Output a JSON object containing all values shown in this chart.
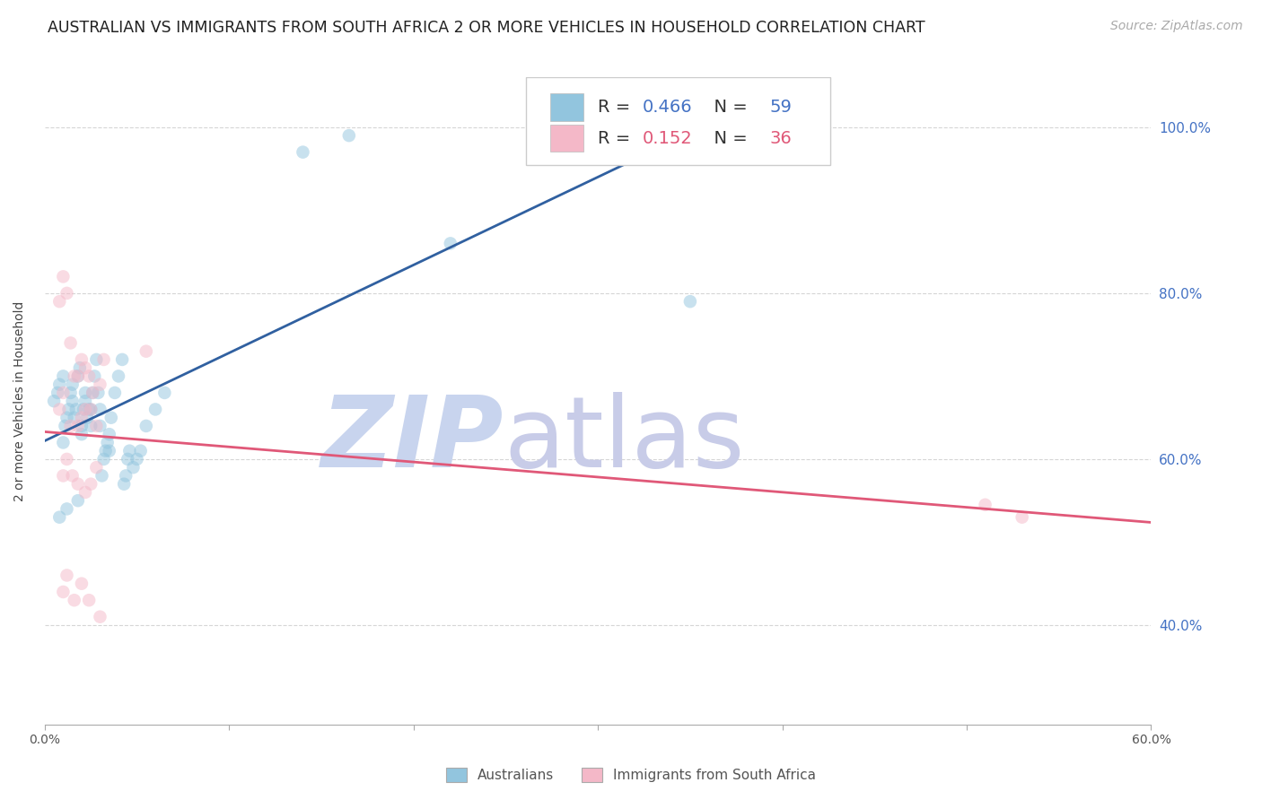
{
  "title": "AUSTRALIAN VS IMMIGRANTS FROM SOUTH AFRICA 2 OR MORE VEHICLES IN HOUSEHOLD CORRELATION CHART",
  "source_text": "Source: ZipAtlas.com",
  "ylabel": "2 or more Vehicles in Household",
  "xlim": [
    0.0,
    0.6
  ],
  "ylim": [
    0.28,
    1.06
  ],
  "x_tick_labels": [
    "0.0%",
    "",
    "",
    "",
    "",
    "",
    "60.0%"
  ],
  "x_tick_vals": [
    0.0,
    0.1,
    0.2,
    0.3,
    0.4,
    0.5,
    0.6
  ],
  "y_tick_vals": [
    0.4,
    0.6,
    0.8,
    1.0
  ],
  "y_tick_labels": [
    "40.0%",
    "60.0%",
    "80.0%",
    "100.0%"
  ],
  "legend_R_blue": "0.466",
  "legend_N_blue": "59",
  "legend_R_pink": "0.152",
  "legend_N_pink": "36",
  "blue_color": "#92c5de",
  "pink_color": "#f4b8c8",
  "blue_line_color": "#3060a0",
  "pink_line_color": "#e05878",
  "watermark_zip_color": "#c8d4ee",
  "watermark_atlas_color": "#c8cce8",
  "blue_aus_x": [
    0.005,
    0.007,
    0.008,
    0.01,
    0.01,
    0.011,
    0.012,
    0.013,
    0.014,
    0.015,
    0.015,
    0.016,
    0.017,
    0.018,
    0.019,
    0.02,
    0.02,
    0.021,
    0.022,
    0.022,
    0.023,
    0.024,
    0.025,
    0.025,
    0.026,
    0.027,
    0.028,
    0.029,
    0.03,
    0.03,
    0.031,
    0.032,
    0.033,
    0.034,
    0.035,
    0.035,
    0.036,
    0.038,
    0.04,
    0.042,
    0.043,
    0.044,
    0.045,
    0.046,
    0.048,
    0.05,
    0.052,
    0.055,
    0.06,
    0.065,
    0.008,
    0.012,
    0.018,
    0.14,
    0.165,
    0.22,
    0.275,
    0.31,
    0.35
  ],
  "blue_aus_y": [
    0.67,
    0.68,
    0.69,
    0.7,
    0.62,
    0.64,
    0.65,
    0.66,
    0.68,
    0.67,
    0.69,
    0.65,
    0.66,
    0.7,
    0.71,
    0.63,
    0.64,
    0.66,
    0.67,
    0.68,
    0.65,
    0.66,
    0.64,
    0.66,
    0.68,
    0.7,
    0.72,
    0.68,
    0.64,
    0.66,
    0.58,
    0.6,
    0.61,
    0.62,
    0.61,
    0.63,
    0.65,
    0.68,
    0.7,
    0.72,
    0.57,
    0.58,
    0.6,
    0.61,
    0.59,
    0.6,
    0.61,
    0.64,
    0.66,
    0.68,
    0.53,
    0.54,
    0.55,
    0.97,
    0.99,
    0.86,
    1.0,
    0.99,
    0.79
  ],
  "pink_sa_x": [
    0.008,
    0.01,
    0.012,
    0.014,
    0.016,
    0.018,
    0.02,
    0.022,
    0.024,
    0.026,
    0.008,
    0.01,
    0.014,
    0.018,
    0.02,
    0.022,
    0.025,
    0.028,
    0.03,
    0.032,
    0.01,
    0.012,
    0.015,
    0.018,
    0.022,
    0.025,
    0.028,
    0.055,
    0.51,
    0.53,
    0.01,
    0.012,
    0.016,
    0.02,
    0.024,
    0.03
  ],
  "pink_sa_y": [
    0.79,
    0.82,
    0.8,
    0.74,
    0.7,
    0.7,
    0.72,
    0.71,
    0.7,
    0.68,
    0.66,
    0.68,
    0.64,
    0.64,
    0.65,
    0.66,
    0.66,
    0.64,
    0.69,
    0.72,
    0.58,
    0.6,
    0.58,
    0.57,
    0.56,
    0.57,
    0.59,
    0.73,
    0.545,
    0.53,
    0.44,
    0.46,
    0.43,
    0.45,
    0.43,
    0.41
  ],
  "marker_size": 110,
  "alpha": 0.5,
  "title_fontsize": 12.5,
  "axis_label_fontsize": 10,
  "tick_fontsize": 10,
  "legend_fontsize": 14,
  "source_fontsize": 10
}
